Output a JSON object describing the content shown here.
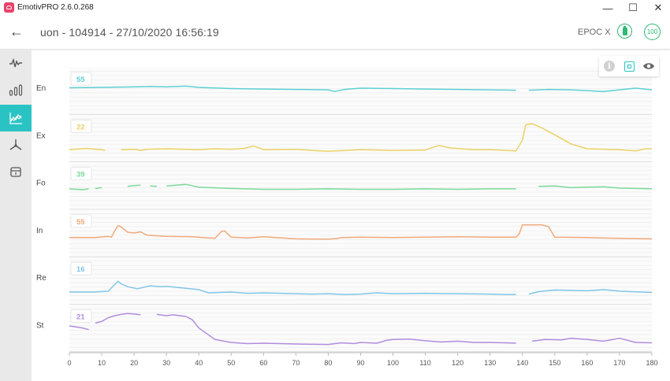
{
  "app": {
    "title": "EmotivPRO 2.6.0.268"
  },
  "window_controls": {
    "minimize": "—",
    "maximize": "☐",
    "close": "✕"
  },
  "header": {
    "back_icon": "←",
    "title": "uon - 104914  - 27/10/2020 16:56:19",
    "device": "EPOC X",
    "battery_icon": "battery-icon",
    "signal_quality": "100"
  },
  "sidebar": {
    "items": [
      {
        "name": "eeg-waveform-icon",
        "active": false
      },
      {
        "name": "band-power-icon",
        "active": false
      },
      {
        "name": "performance-metrics-icon",
        "active": true
      },
      {
        "name": "motion-icon",
        "active": false
      },
      {
        "name": "markers-icon",
        "active": false
      }
    ]
  },
  "toolbar": {
    "info_icon": "info-icon",
    "fit_icon": "fit-screen-icon",
    "eye_icon": "eye-icon",
    "info_glyph": "i"
  },
  "colors": {
    "En": "#5ecfd3",
    "Ex": "#ebd164",
    "Fo": "#7ad99a",
    "In": "#f0a97a",
    "Re": "#7fc6e8",
    "St": "#b08ddd",
    "accent": "#2ac3c4",
    "green": "#2eb872"
  },
  "chart_data": {
    "type": "line",
    "xlim": [
      0,
      180
    ],
    "x_ticks": [
      0,
      10,
      20,
      30,
      40,
      50,
      60,
      70,
      80,
      90,
      100,
      110,
      120,
      130,
      140,
      150,
      160,
      170,
      180
    ],
    "ylim": [
      0,
      100
    ],
    "grid": true,
    "series": [
      {
        "name": "En",
        "badge": "55",
        "color": "#5ecfd3",
        "points": [
          [
            0,
            57
          ],
          [
            10,
            58
          ],
          [
            20,
            59
          ],
          [
            25,
            60
          ],
          [
            30,
            59
          ],
          [
            36,
            61
          ],
          [
            40,
            58
          ],
          [
            50,
            55
          ],
          [
            60,
            54
          ],
          [
            70,
            53
          ],
          [
            80,
            52
          ],
          [
            82,
            48
          ],
          [
            85,
            53
          ],
          [
            90,
            56
          ],
          [
            100,
            55
          ],
          [
            110,
            54
          ],
          [
            120,
            53
          ],
          [
            130,
            52
          ],
          [
            138,
            51
          ],
          null,
          [
            142,
            51
          ],
          [
            148,
            53
          ],
          [
            155,
            52
          ],
          [
            160,
            50
          ],
          [
            165,
            48
          ],
          [
            170,
            52
          ],
          [
            175,
            56
          ],
          [
            180,
            52
          ]
        ]
      },
      {
        "name": "Ex",
        "badge": "22",
        "color": "#ebd164",
        "points": [
          [
            0,
            22
          ],
          [
            5,
            25
          ],
          [
            10,
            22
          ],
          [
            11,
            20
          ],
          null,
          [
            13,
            20
          ],
          null,
          [
            16,
            22
          ],
          [
            20,
            23
          ],
          [
            22,
            20
          ],
          [
            24,
            23
          ],
          [
            30,
            24
          ],
          [
            35,
            23
          ],
          [
            40,
            22
          ],
          [
            45,
            24
          ],
          [
            50,
            23
          ],
          [
            54,
            25
          ],
          [
            57,
            31
          ],
          [
            60,
            22
          ],
          [
            70,
            23
          ],
          [
            75,
            20
          ],
          [
            80,
            18
          ],
          [
            90,
            22
          ],
          [
            100,
            20
          ],
          [
            110,
            21
          ],
          [
            114,
            32
          ],
          [
            118,
            26
          ],
          [
            125,
            22
          ],
          [
            130,
            22
          ],
          [
            138,
            19
          ],
          [
            140,
            45
          ],
          [
            141,
            82
          ],
          [
            143,
            85
          ],
          [
            146,
            75
          ],
          [
            150,
            58
          ],
          [
            155,
            36
          ],
          [
            160,
            24
          ],
          [
            170,
            22
          ],
          [
            175,
            19
          ],
          [
            178,
            24
          ],
          [
            180,
            24
          ]
        ]
      },
      {
        "name": "Fo",
        "badge": "39",
        "color": "#7ad99a",
        "points": [
          [
            0,
            42
          ],
          [
            4,
            40
          ],
          [
            6,
            42
          ],
          null,
          [
            8,
            43
          ],
          [
            10,
            45
          ],
          null,
          [
            14,
            46
          ],
          null,
          [
            18,
            48
          ],
          [
            20,
            50
          ],
          [
            22,
            51
          ],
          null,
          [
            25,
            49
          ],
          [
            27,
            48
          ],
          null,
          [
            30,
            49
          ],
          [
            36,
            53
          ],
          [
            40,
            46
          ],
          [
            50,
            43
          ],
          [
            60,
            41
          ],
          [
            70,
            41
          ],
          [
            80,
            42
          ],
          [
            90,
            41
          ],
          [
            100,
            41
          ],
          [
            110,
            42
          ],
          [
            120,
            41
          ],
          [
            130,
            42
          ],
          [
            138,
            42
          ],
          null,
          [
            145,
            48
          ],
          [
            150,
            49
          ],
          [
            155,
            45
          ],
          [
            160,
            46
          ],
          [
            165,
            47
          ],
          [
            170,
            44
          ],
          [
            180,
            42
          ]
        ]
      },
      {
        "name": "In",
        "badge": "55",
        "color": "#f0a97a",
        "points": [
          [
            0,
            39
          ],
          [
            8,
            39
          ],
          [
            12,
            42
          ],
          [
            13,
            40
          ],
          [
            14,
            55
          ],
          [
            15,
            68
          ],
          [
            16,
            65
          ],
          [
            18,
            52
          ],
          [
            20,
            50
          ],
          [
            22,
            53
          ],
          [
            24,
            45
          ],
          [
            30,
            42
          ],
          [
            38,
            41
          ],
          [
            45,
            37
          ],
          [
            47,
            54
          ],
          [
            48,
            55
          ],
          [
            50,
            40
          ],
          [
            55,
            38
          ],
          [
            60,
            41
          ],
          [
            70,
            36
          ],
          [
            80,
            35
          ],
          [
            83,
            37
          ],
          [
            84,
            39
          ],
          [
            90,
            40
          ],
          [
            100,
            39
          ],
          [
            110,
            40
          ],
          [
            120,
            41
          ],
          [
            130,
            40
          ],
          [
            138,
            40
          ],
          [
            139,
            48
          ],
          [
            140,
            70
          ],
          [
            146,
            70
          ],
          [
            148,
            66
          ],
          [
            150,
            40
          ],
          [
            160,
            39
          ],
          [
            170,
            37
          ],
          [
            180,
            36
          ]
        ]
      },
      {
        "name": "Re",
        "badge": "16",
        "color": "#7fc6e8",
        "points": [
          [
            0,
            22
          ],
          [
            8,
            22
          ],
          [
            12,
            24
          ],
          [
            15,
            48
          ],
          [
            16,
            42
          ],
          [
            18,
            35
          ],
          [
            21,
            30
          ],
          [
            25,
            37
          ],
          [
            28,
            35
          ],
          [
            30,
            36
          ],
          [
            40,
            28
          ],
          [
            43,
            20
          ],
          [
            50,
            22
          ],
          [
            55,
            19
          ],
          [
            60,
            20
          ],
          [
            70,
            18
          ],
          [
            75,
            17
          ],
          [
            80,
            18
          ],
          [
            85,
            16
          ],
          [
            90,
            17
          ],
          [
            95,
            20
          ],
          [
            100,
            18
          ],
          [
            110,
            19
          ],
          [
            120,
            18
          ],
          [
            130,
            17
          ],
          [
            135,
            16
          ],
          [
            138,
            16
          ],
          null,
          [
            142,
            17
          ],
          [
            145,
            23
          ],
          [
            150,
            27
          ],
          [
            155,
            26
          ],
          [
            160,
            25
          ],
          [
            165,
            28
          ],
          [
            170,
            24
          ],
          [
            180,
            21
          ]
        ]
      },
      {
        "name": "St",
        "badge": "21",
        "color": "#b08ddd",
        "points": [
          [
            0,
            55
          ],
          [
            4,
            50
          ],
          [
            6,
            46
          ],
          null,
          [
            7,
            50
          ],
          null,
          [
            8,
            62
          ],
          [
            10,
            66
          ],
          [
            12,
            75
          ],
          [
            14,
            80
          ],
          [
            16,
            83
          ],
          [
            18,
            85
          ],
          [
            20,
            84
          ],
          [
            22,
            82
          ],
          null,
          [
            27,
            83
          ],
          [
            30,
            80
          ],
          [
            32,
            82
          ],
          [
            36,
            78
          ],
          [
            38,
            70
          ],
          [
            40,
            50
          ],
          [
            45,
            22
          ],
          [
            50,
            15
          ],
          [
            55,
            12
          ],
          [
            60,
            13
          ],
          [
            70,
            11
          ],
          [
            80,
            10
          ],
          [
            84,
            14
          ],
          [
            88,
            12
          ],
          [
            90,
            15
          ],
          [
            95,
            13
          ],
          [
            98,
            20
          ],
          [
            100,
            22
          ],
          [
            105,
            23
          ],
          [
            110,
            19
          ],
          [
            115,
            16
          ],
          [
            120,
            18
          ],
          [
            125,
            15
          ],
          [
            130,
            15
          ],
          [
            135,
            14
          ],
          [
            138,
            13
          ],
          null,
          [
            143,
            18
          ],
          [
            147,
            22
          ],
          [
            152,
            21
          ],
          [
            155,
            25
          ],
          [
            160,
            22
          ],
          [
            165,
            18
          ],
          [
            168,
            22
          ],
          [
            170,
            25
          ],
          [
            175,
            15
          ],
          [
            180,
            14
          ]
        ]
      }
    ]
  }
}
